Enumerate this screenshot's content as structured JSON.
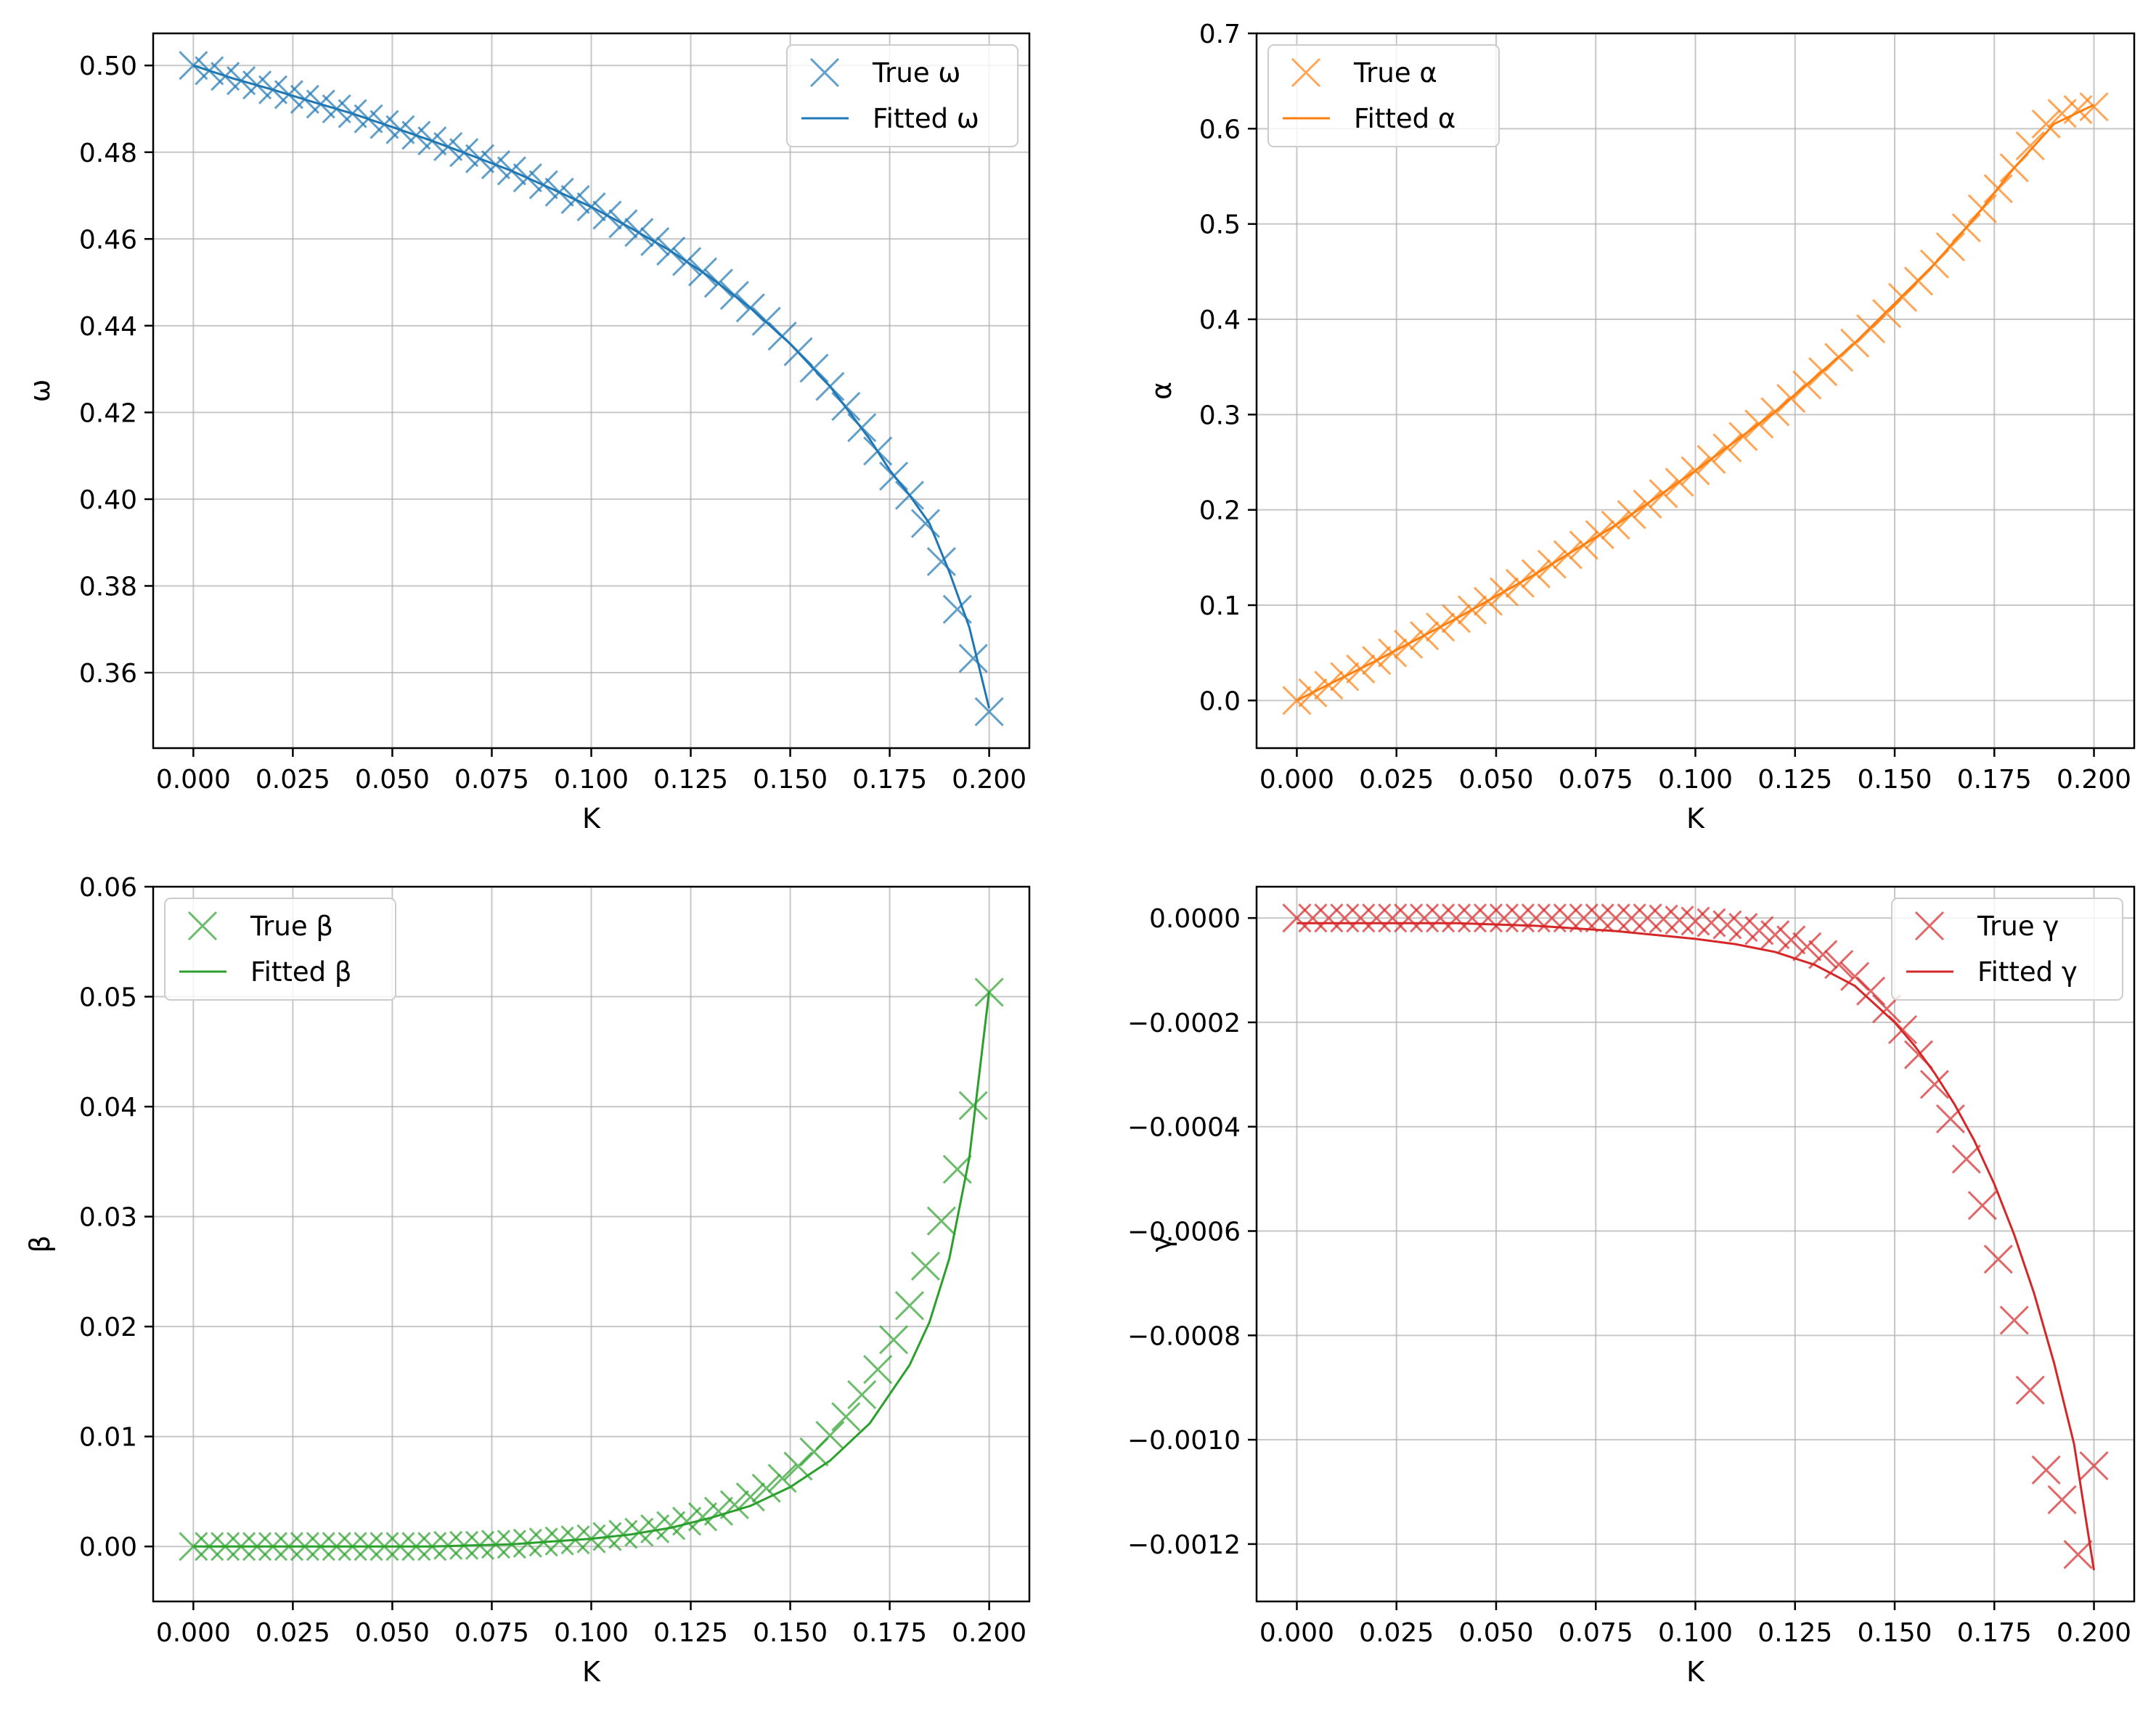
{
  "chart_data": [
    {
      "type": "line",
      "id": "omega",
      "xlabel": "K",
      "ylabel": "ω",
      "xlim": [
        -0.0101,
        0.2101
      ],
      "ylim": [
        0.3426,
        0.5074
      ],
      "xticks": [
        0.0,
        0.025,
        0.05,
        0.075,
        0.1,
        0.125,
        0.15,
        0.175,
        0.2
      ],
      "xticklabels": [
        "0.000",
        "0.025",
        "0.050",
        "0.075",
        "0.100",
        "0.125",
        "0.150",
        "0.175",
        "0.200"
      ],
      "yticks": [
        0.36,
        0.38,
        0.4,
        0.42,
        0.44,
        0.46,
        0.48,
        0.5
      ],
      "yticklabels": [
        "0.36",
        "0.38",
        "0.40",
        "0.42",
        "0.44",
        "0.46",
        "0.48",
        "0.50"
      ],
      "grid": true,
      "legend": "upper right",
      "color": "#1f77b4",
      "series": [
        {
          "name": "True ω",
          "marker": "x",
          "x": [
            0.0,
            0.004,
            0.008,
            0.012,
            0.016,
            0.02,
            0.024,
            0.028,
            0.032,
            0.036,
            0.04,
            0.044,
            0.048,
            0.052,
            0.056,
            0.06,
            0.064,
            0.068,
            0.072,
            0.076,
            0.08,
            0.084,
            0.088,
            0.092,
            0.096,
            0.1,
            0.104,
            0.108,
            0.112,
            0.116,
            0.12,
            0.124,
            0.128,
            0.132,
            0.136,
            0.14,
            0.144,
            0.148,
            0.152,
            0.156,
            0.16,
            0.164,
            0.168,
            0.172,
            0.176,
            0.18,
            0.184,
            0.188,
            0.192,
            0.196,
            0.2
          ],
          "y": [
            0.5,
            0.4988,
            0.4975,
            0.4965,
            0.4955,
            0.4944,
            0.4933,
            0.4922,
            0.4911,
            0.49,
            0.4889,
            0.4877,
            0.4864,
            0.4852,
            0.4839,
            0.4826,
            0.4813,
            0.4799,
            0.4785,
            0.4771,
            0.4757,
            0.4741,
            0.4725,
            0.4708,
            0.4691,
            0.4674,
            0.4655,
            0.4635,
            0.4615,
            0.4594,
            0.4572,
            0.4548,
            0.4524,
            0.4498,
            0.447,
            0.4441,
            0.441,
            0.4376,
            0.434,
            0.4302,
            0.426,
            0.4214,
            0.4165,
            0.4111,
            0.4053,
            0.4009,
            0.3944,
            0.3856,
            0.3746,
            0.3633,
            0.351
          ]
        },
        {
          "name": "Fitted ω",
          "marker": "line",
          "x": [
            0.0,
            0.01,
            0.02,
            0.03,
            0.04,
            0.05,
            0.06,
            0.07,
            0.08,
            0.09,
            0.1,
            0.11,
            0.12,
            0.13,
            0.14,
            0.15,
            0.16,
            0.17,
            0.175,
            0.18,
            0.185,
            0.19,
            0.195,
            0.2
          ],
          "y": [
            0.5,
            0.497,
            0.4944,
            0.4916,
            0.4889,
            0.4858,
            0.4826,
            0.4792,
            0.4757,
            0.4716,
            0.4674,
            0.4625,
            0.4572,
            0.4511,
            0.4441,
            0.4358,
            0.426,
            0.4138,
            0.4067,
            0.4009,
            0.3944,
            0.3832,
            0.3705,
            0.3518
          ]
        }
      ]
    },
    {
      "type": "line",
      "id": "alpha",
      "xlabel": "K",
      "ylabel": "α",
      "xlim": [
        -0.0101,
        0.2101
      ],
      "ylim": [
        -0.05,
        0.7
      ],
      "xticks": [
        0.0,
        0.025,
        0.05,
        0.075,
        0.1,
        0.125,
        0.15,
        0.175,
        0.2
      ],
      "xticklabels": [
        "0.000",
        "0.025",
        "0.050",
        "0.075",
        "0.100",
        "0.125",
        "0.150",
        "0.175",
        "0.200"
      ],
      "yticks": [
        0.0,
        0.1,
        0.2,
        0.3,
        0.4,
        0.5,
        0.6,
        0.7
      ],
      "yticklabels": [
        "0.0",
        "0.1",
        "0.2",
        "0.3",
        "0.4",
        "0.5",
        "0.6",
        "0.7"
      ],
      "grid": true,
      "legend": "upper left",
      "color": "#ff7f0e",
      "series": [
        {
          "name": "True α",
          "marker": "x",
          "x": [
            0.0,
            0.004,
            0.008,
            0.012,
            0.016,
            0.02,
            0.024,
            0.028,
            0.032,
            0.036,
            0.04,
            0.044,
            0.048,
            0.052,
            0.056,
            0.06,
            0.064,
            0.068,
            0.072,
            0.076,
            0.08,
            0.084,
            0.088,
            0.092,
            0.096,
            0.1,
            0.104,
            0.108,
            0.112,
            0.116,
            0.12,
            0.124,
            0.128,
            0.132,
            0.136,
            0.14,
            0.144,
            0.148,
            0.152,
            0.156,
            0.16,
            0.164,
            0.168,
            0.172,
            0.176,
            0.18,
            0.184,
            0.188,
            0.192,
            0.196,
            0.2
          ],
          "y": [
            0.0,
            0.008,
            0.016,
            0.025,
            0.033,
            0.042,
            0.05,
            0.059,
            0.068,
            0.077,
            0.086,
            0.095,
            0.104,
            0.114,
            0.123,
            0.133,
            0.143,
            0.153,
            0.163,
            0.174,
            0.184,
            0.195,
            0.206,
            0.217,
            0.229,
            0.241,
            0.253,
            0.265,
            0.277,
            0.29,
            0.303,
            0.317,
            0.331,
            0.345,
            0.36,
            0.375,
            0.39,
            0.406,
            0.423,
            0.44,
            0.458,
            0.476,
            0.496,
            0.516,
            0.537,
            0.559,
            0.582,
            0.605,
            0.616,
            0.62,
            0.623
          ]
        },
        {
          "name": "Fitted α",
          "marker": "line",
          "x": [
            0.0,
            0.02,
            0.04,
            0.06,
            0.08,
            0.1,
            0.12,
            0.14,
            0.16,
            0.17,
            0.18,
            0.19,
            0.2
          ],
          "y": [
            0.0,
            0.042,
            0.086,
            0.133,
            0.184,
            0.241,
            0.303,
            0.375,
            0.458,
            0.506,
            0.559,
            0.605,
            0.625
          ]
        }
      ]
    },
    {
      "type": "line",
      "id": "beta",
      "xlabel": "K",
      "ylabel": "β",
      "xlim": [
        -0.0101,
        0.2101
      ],
      "ylim": [
        -0.005,
        0.06
      ],
      "xticks": [
        0.0,
        0.025,
        0.05,
        0.075,
        0.1,
        0.125,
        0.15,
        0.175,
        0.2
      ],
      "xticklabels": [
        "0.000",
        "0.025",
        "0.050",
        "0.075",
        "0.100",
        "0.125",
        "0.150",
        "0.175",
        "0.200"
      ],
      "yticks": [
        0.0,
        0.01,
        0.02,
        0.03,
        0.04,
        0.05,
        0.06
      ],
      "yticklabels": [
        "0.00",
        "0.01",
        "0.02",
        "0.03",
        "0.04",
        "0.05",
        "0.06"
      ],
      "grid": true,
      "legend": "upper left",
      "color": "#2ca02c",
      "series": [
        {
          "name": "True β",
          "marker": "x",
          "x": [
            0.0,
            0.004,
            0.008,
            0.012,
            0.016,
            0.02,
            0.024,
            0.028,
            0.032,
            0.036,
            0.04,
            0.044,
            0.048,
            0.052,
            0.056,
            0.06,
            0.064,
            0.068,
            0.072,
            0.076,
            0.08,
            0.084,
            0.088,
            0.092,
            0.096,
            0.1,
            0.104,
            0.108,
            0.112,
            0.116,
            0.12,
            0.124,
            0.128,
            0.132,
            0.136,
            0.14,
            0.144,
            0.148,
            0.152,
            0.156,
            0.16,
            0.164,
            0.168,
            0.172,
            0.176,
            0.18,
            0.184,
            0.188,
            0.192,
            0.196,
            0.2
          ],
          "y": [
            0.0,
            0.0,
            0.0,
            0.0,
            0.0,
            0.0,
            0.0,
            0.0,
            0.0,
            0.0,
            0.0,
            0.0,
            0.0,
            0.0,
            0.0,
            0.0,
            0.0001,
            0.0001,
            0.0001,
            0.0002,
            0.0002,
            0.0003,
            0.0004,
            0.0005,
            0.0006,
            0.0007,
            0.0009,
            0.0011,
            0.0013,
            0.0016,
            0.0019,
            0.0023,
            0.0027,
            0.0032,
            0.0038,
            0.0045,
            0.0053,
            0.0062,
            0.0073,
            0.0086,
            0.0101,
            0.0118,
            0.0138,
            0.0161,
            0.0188,
            0.0219,
            0.0255,
            0.0296,
            0.0343,
            0.0401,
            0.0504
          ]
        },
        {
          "name": "Fitted β",
          "marker": "line",
          "x": [
            0.0,
            0.02,
            0.04,
            0.06,
            0.08,
            0.1,
            0.11,
            0.12,
            0.13,
            0.14,
            0.15,
            0.16,
            0.17,
            0.18,
            0.185,
            0.19,
            0.195,
            0.2
          ],
          "y": [
            0.0,
            0.0,
            0.0,
            0.0,
            0.0002,
            0.0007,
            0.0011,
            0.0017,
            0.0026,
            0.0037,
            0.0054,
            0.0078,
            0.0112,
            0.0165,
            0.0204,
            0.0262,
            0.0353,
            0.0505
          ]
        }
      ]
    },
    {
      "type": "line",
      "id": "gamma",
      "xlabel": "K",
      "ylabel": "γ",
      "xlim": [
        -0.0101,
        0.2101
      ],
      "ylim": [
        -0.00131,
        6e-05
      ],
      "xticks": [
        0.0,
        0.025,
        0.05,
        0.075,
        0.1,
        0.125,
        0.15,
        0.175,
        0.2
      ],
      "xticklabels": [
        "0.000",
        "0.025",
        "0.050",
        "0.075",
        "0.100",
        "0.125",
        "0.150",
        "0.175",
        "0.200"
      ],
      "yticks": [
        -0.0012,
        -0.001,
        -0.0008,
        -0.0006,
        -0.0004,
        -0.0002,
        0.0
      ],
      "yticklabels": [
        "−0.0012",
        "−0.0010",
        "−0.0008",
        "−0.0006",
        "−0.0004",
        "−0.0002",
        "0.0000"
      ],
      "grid": true,
      "legend": "upper right",
      "color": "#d62728",
      "series": [
        {
          "name": "True γ",
          "marker": "x",
          "x": [
            0.0,
            0.004,
            0.008,
            0.012,
            0.016,
            0.02,
            0.024,
            0.028,
            0.032,
            0.036,
            0.04,
            0.044,
            0.048,
            0.052,
            0.056,
            0.06,
            0.064,
            0.068,
            0.072,
            0.076,
            0.08,
            0.084,
            0.088,
            0.092,
            0.096,
            0.1,
            0.104,
            0.108,
            0.112,
            0.116,
            0.12,
            0.124,
            0.128,
            0.132,
            0.136,
            0.14,
            0.144,
            0.148,
            0.152,
            0.156,
            0.16,
            0.164,
            0.168,
            0.172,
            0.176,
            0.18,
            0.184,
            0.188,
            0.192,
            0.196,
            0.2
          ],
          "y": [
            0.0,
            0.0,
            0.0,
            0.0,
            0.0,
            0.0,
            0.0,
            0.0,
            0.0,
            0.0,
            0.0,
            0.0,
            0.0,
            0.0,
            0.0,
            0.0,
            0.0,
            0.0,
            0.0,
            0.0,
            0.0,
            0.0,
            0.0,
            -2e-06,
            -4e-06,
            -6e-06,
            -9e-06,
            -1.3e-05,
            -1.8e-05,
            -2.4e-05,
            -3.2e-05,
            -4.2e-05,
            -5.5e-05,
            -7e-05,
            -8.9e-05,
            -0.000112,
            -0.00014,
            -0.000174,
            -0.000214,
            -0.000262,
            -0.000319,
            -0.000385,
            -0.000462,
            -0.000551,
            -0.000654,
            -0.000771,
            -0.000905,
            -0.001058,
            -0.001115,
            -0.00122,
            -0.00105
          ]
        },
        {
          "name": "Fitted γ",
          "marker": "line",
          "x": [
            0.0,
            0.02,
            0.04,
            0.06,
            0.08,
            0.1,
            0.11,
            0.12,
            0.13,
            0.14,
            0.15,
            0.155,
            0.16,
            0.165,
            0.17,
            0.175,
            0.18,
            0.185,
            0.19,
            0.195,
            0.2
          ],
          "y": [
            -1e-05,
            -1e-05,
            -1e-05,
            -1.5e-05,
            -2.5e-05,
            -4e-05,
            -5e-05,
            -6.5e-05,
            -9e-05,
            -0.00013,
            -0.0002,
            -0.000245,
            -0.000297,
            -0.000357,
            -0.000427,
            -0.00051,
            -0.000607,
            -0.00072,
            -0.000853,
            -0.001008,
            -0.00125
          ]
        }
      ]
    }
  ]
}
